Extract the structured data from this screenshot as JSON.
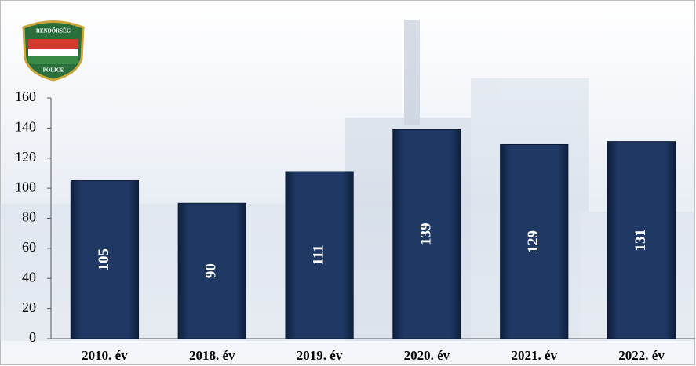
{
  "logo": {
    "top": "RENDŐRSÉG",
    "bottom": "POLICE"
  },
  "chart_data": {
    "type": "bar",
    "categories": [
      "2010. év",
      "2018. év",
      "2019. év",
      "2020. év",
      "2021. év",
      "2022. év"
    ],
    "values": [
      105,
      90,
      111,
      139,
      129,
      131
    ],
    "color": "#1f3864",
    "ylim": [
      0,
      160
    ],
    "yticks": [
      0,
      20,
      40,
      60,
      80,
      100,
      120,
      140,
      160
    ],
    "data_labels": true
  }
}
